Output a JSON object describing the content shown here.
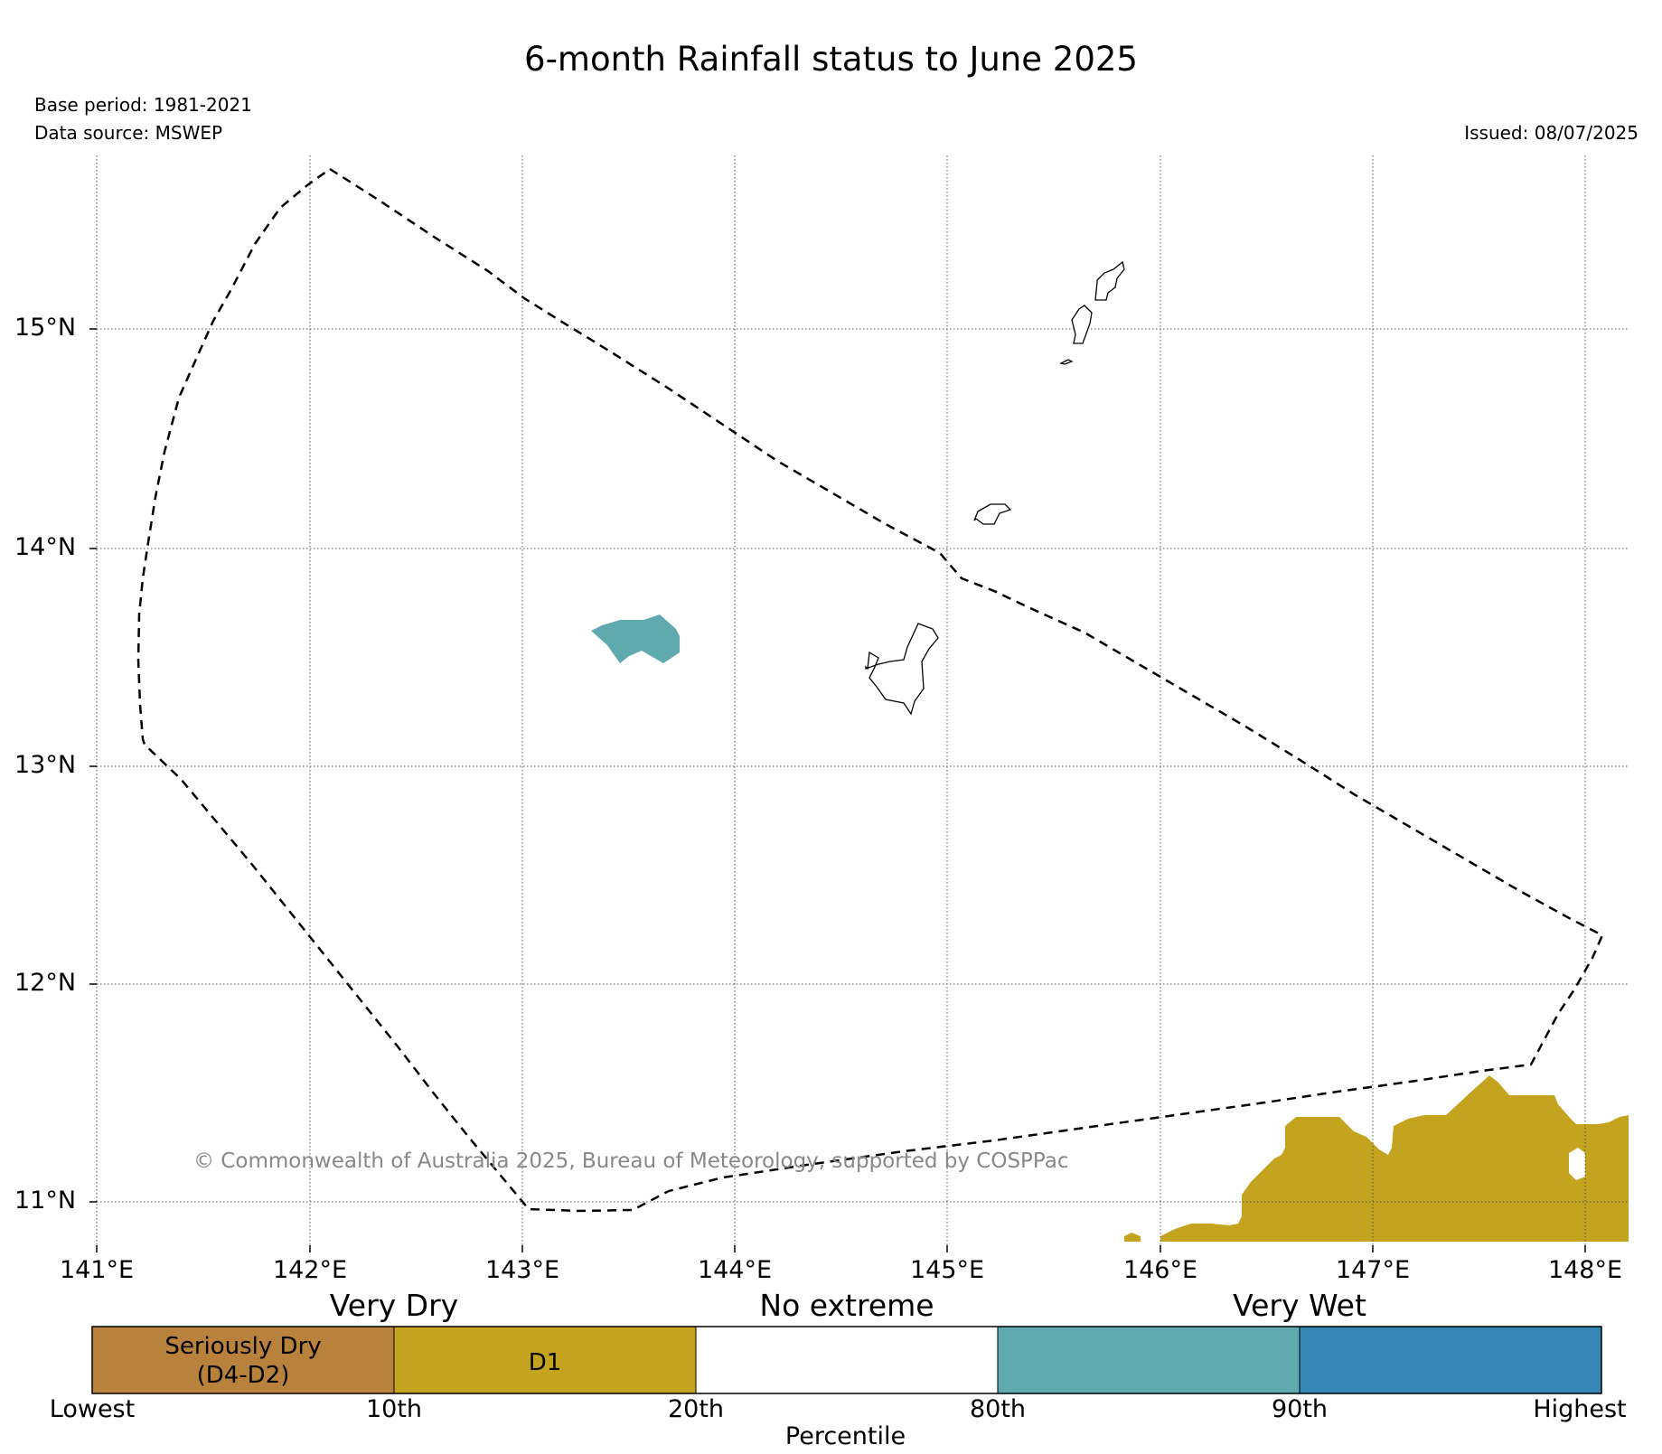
{
  "header": {
    "title": "6-month Rainfall status to June 2025",
    "base_period": "Base period: 1981-2021",
    "data_source": "Data source: MSWEP",
    "issued": "Issued: 08/07/2025"
  },
  "map": {
    "lon_labels": [
      "141°E",
      "142°E",
      "143°E",
      "144°E",
      "145°E",
      "146°E",
      "147°E",
      "148°E"
    ],
    "lat_labels": [
      "15°N",
      "14°N",
      "13°N",
      "12°N",
      "11°N"
    ],
    "copyright": "© Commonwealth of Australia 2025, Bureau of Meteorology, supported by COSPPac",
    "colors": {
      "dry_d1": "#c4a41e",
      "wet_80_90": "#5faaae",
      "boundary": "#000000"
    }
  },
  "colorbar": {
    "headers": [
      "Very Dry",
      "No extreme",
      "Very Wet"
    ],
    "segments": [
      {
        "label": "Seriously Dry\n(D4-D2)",
        "color": "#b8813c"
      },
      {
        "label": "D1",
        "color": "#c4a41e"
      },
      {
        "label": "",
        "color": "#ffffff"
      },
      {
        "label": "",
        "color": "#5faaae"
      },
      {
        "label": "",
        "color": "#3686b7"
      }
    ],
    "ticks": [
      "Lowest",
      "10th",
      "20th",
      "80th",
      "90th",
      "Highest"
    ],
    "axis_label": "Percentile"
  }
}
